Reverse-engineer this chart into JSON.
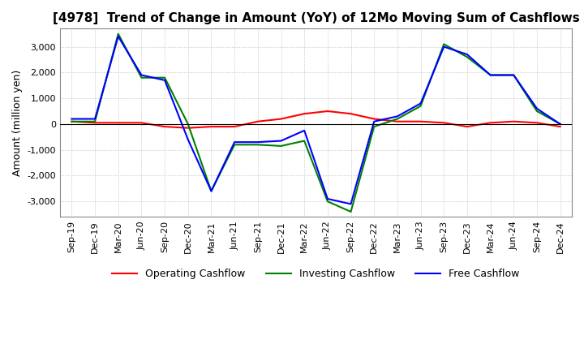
{
  "title": "[4978]  Trend of Change in Amount (YoY) of 12Mo Moving Sum of Cashflows",
  "ylabel": "Amount (million yen)",
  "xlim_labels": [
    "Sep-19",
    "Dec-19",
    "Mar-20",
    "Jun-20",
    "Sep-20",
    "Dec-20",
    "Mar-21",
    "Jun-21",
    "Sep-21",
    "Dec-21",
    "Mar-22",
    "Jun-22",
    "Sep-22",
    "Dec-22",
    "Mar-23",
    "Jun-23",
    "Sep-23",
    "Dec-23",
    "Mar-24",
    "Jun-24",
    "Sep-24",
    "Dec-24"
  ],
  "ylim": [
    -3600,
    3700
  ],
  "yticks": [
    -3000,
    -2000,
    -1000,
    0,
    1000,
    2000,
    3000
  ],
  "operating": [
    100,
    50,
    50,
    50,
    -100,
    -150,
    -100,
    -100,
    100,
    200,
    400,
    500,
    400,
    200,
    100,
    100,
    50,
    -100,
    50,
    100,
    50,
    -100
  ],
  "investing": [
    100,
    100,
    3500,
    1800,
    1800,
    0,
    -2600,
    -800,
    -800,
    -850,
    -650,
    -3000,
    -3400,
    -100,
    200,
    700,
    3100,
    2600,
    1900,
    1900,
    500,
    0
  ],
  "free": [
    200,
    200,
    3400,
    1900,
    1700,
    -600,
    -2600,
    -700,
    -700,
    -650,
    -250,
    -2900,
    -3100,
    100,
    300,
    800,
    3000,
    2700,
    1900,
    1900,
    600,
    0
  ],
  "op_color": "#ff0000",
  "inv_color": "#008000",
  "free_color": "#0000ff",
  "grid_color": "#aaaaaa",
  "background": "#ffffff",
  "title_fontsize": 11,
  "label_fontsize": 9,
  "tick_fontsize": 8
}
